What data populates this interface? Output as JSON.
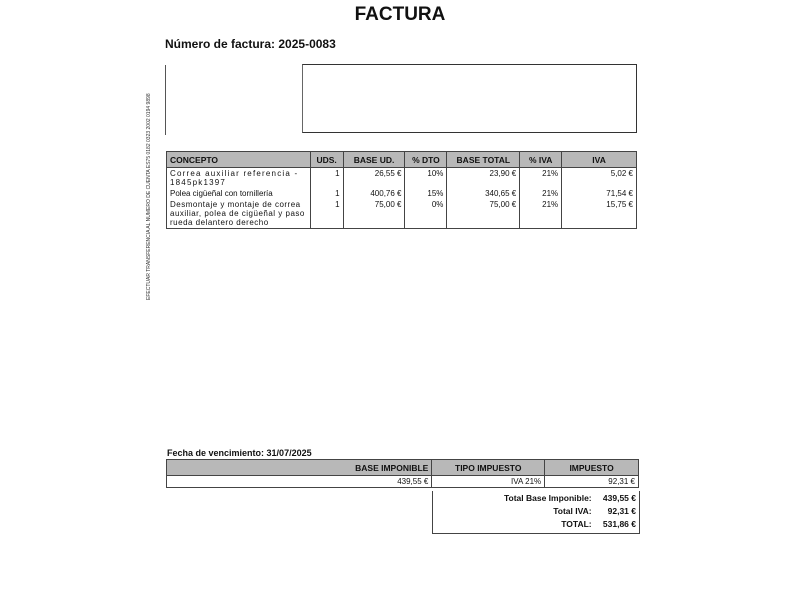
{
  "document": {
    "title": "FACTURA",
    "invoice_number_label": "Número de factura:",
    "invoice_number": "2025-0083",
    "side_note": "EFECTUAR TRANSFERENCIA AL NUMERO DE CUENTA ES75 0182 0323 2002 0194 9898"
  },
  "items_table": {
    "headers": [
      "CONCEPTO",
      "UDS.",
      "BASE UD.",
      "% DTO",
      "BASE TOTAL",
      "% IVA",
      "IVA"
    ],
    "rows": [
      [
        "Correa auxiliar referencia - 1845pk1397",
        "1",
        "26,55 €",
        "10%",
        "23,90 €",
        "21%",
        "5,02 €"
      ],
      [
        "Polea cigüeñal con tornillería",
        "1",
        "400,76 €",
        "15%",
        "340,65 €",
        "21%",
        "71,54 €"
      ],
      [
        "Desmontaje y montaje de correa auxiliar, polea de cigüeñal y paso rueda delantero derecho",
        "1",
        "75,00 €",
        "0%",
        "75,00 €",
        "21%",
        "15,75 €"
      ]
    ]
  },
  "due_date": {
    "label": "Fecha de vencimiento:",
    "value": "31/07/2025"
  },
  "tax_table": {
    "headers": [
      "BASE IMPONIBLE",
      "TIPO IMPUESTO",
      "IMPUESTO"
    ],
    "row": [
      "439,55 €",
      "IVA 21%",
      "92,31 €"
    ]
  },
  "totals": [
    {
      "label": "Total Base Imponible:",
      "value": "439,55 €"
    },
    {
      "label": "Total IVA:",
      "value": "92,31 €"
    },
    {
      "label": "TOTAL:",
      "value": "531,86 €"
    }
  ]
}
